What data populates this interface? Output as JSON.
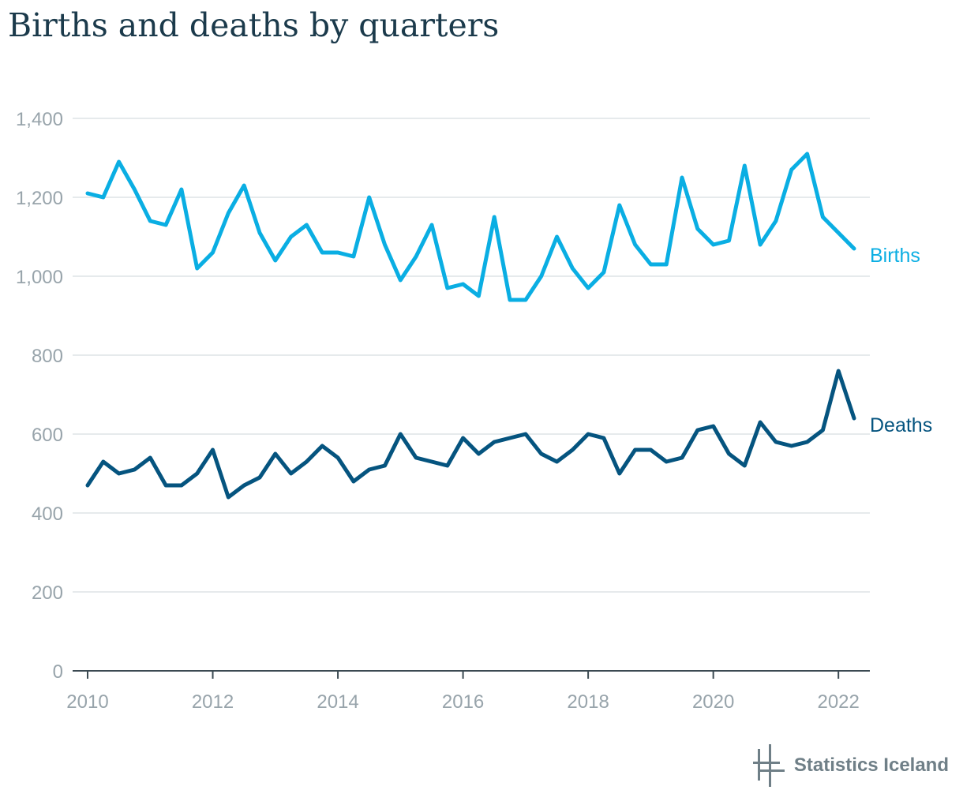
{
  "title": "Births and deaths by quarters",
  "source": "Statistics Iceland",
  "colors": {
    "births": "#0aaee3",
    "deaths": "#05547f",
    "grid": "#dde3e6",
    "axis": "#3b4a52",
    "tick_text": "#98a4ab"
  },
  "chart_data": {
    "type": "line",
    "title": "Births and deaths by quarters",
    "xlabel": "",
    "ylabel": "",
    "x_start": 2010,
    "quarters_per_year": 4,
    "xlim": [
      2010,
      2022.25
    ],
    "ylim": [
      0,
      1400
    ],
    "grid": true,
    "yticks": [
      "0",
      "200",
      "400",
      "600",
      "800",
      "1,000",
      "1,200",
      "1,400"
    ],
    "ytick_values": [
      0,
      200,
      400,
      600,
      800,
      1000,
      1200,
      1400
    ],
    "xticks": [
      "2010",
      "2012",
      "2014",
      "2016",
      "2018",
      "2020",
      "2022"
    ],
    "xtick_values": [
      2010,
      2012,
      2014,
      2016,
      2018,
      2020,
      2022
    ],
    "legend": "inline-right",
    "series": [
      {
        "name": "Births",
        "values": [
          1210,
          1200,
          1290,
          1220,
          1140,
          1130,
          1220,
          1020,
          1060,
          1160,
          1230,
          1110,
          1040,
          1100,
          1130,
          1060,
          1060,
          1050,
          1200,
          1080,
          990,
          1050,
          1130,
          970,
          980,
          950,
          1150,
          940,
          940,
          1000,
          1100,
          1020,
          970,
          1010,
          1180,
          1080,
          1030,
          1030,
          1250,
          1120,
          1080,
          1090,
          1280,
          1080,
          1140,
          1270,
          1310,
          1150,
          1110,
          1070
        ]
      },
      {
        "name": "Deaths",
        "values": [
          470,
          530,
          500,
          510,
          540,
          470,
          470,
          500,
          560,
          440,
          470,
          490,
          550,
          500,
          530,
          570,
          540,
          480,
          510,
          520,
          600,
          540,
          530,
          520,
          590,
          550,
          580,
          590,
          600,
          550,
          530,
          560,
          600,
          590,
          500,
          560,
          560,
          530,
          540,
          610,
          620,
          550,
          520,
          630,
          580,
          570,
          580,
          610,
          760,
          640
        ]
      }
    ]
  }
}
